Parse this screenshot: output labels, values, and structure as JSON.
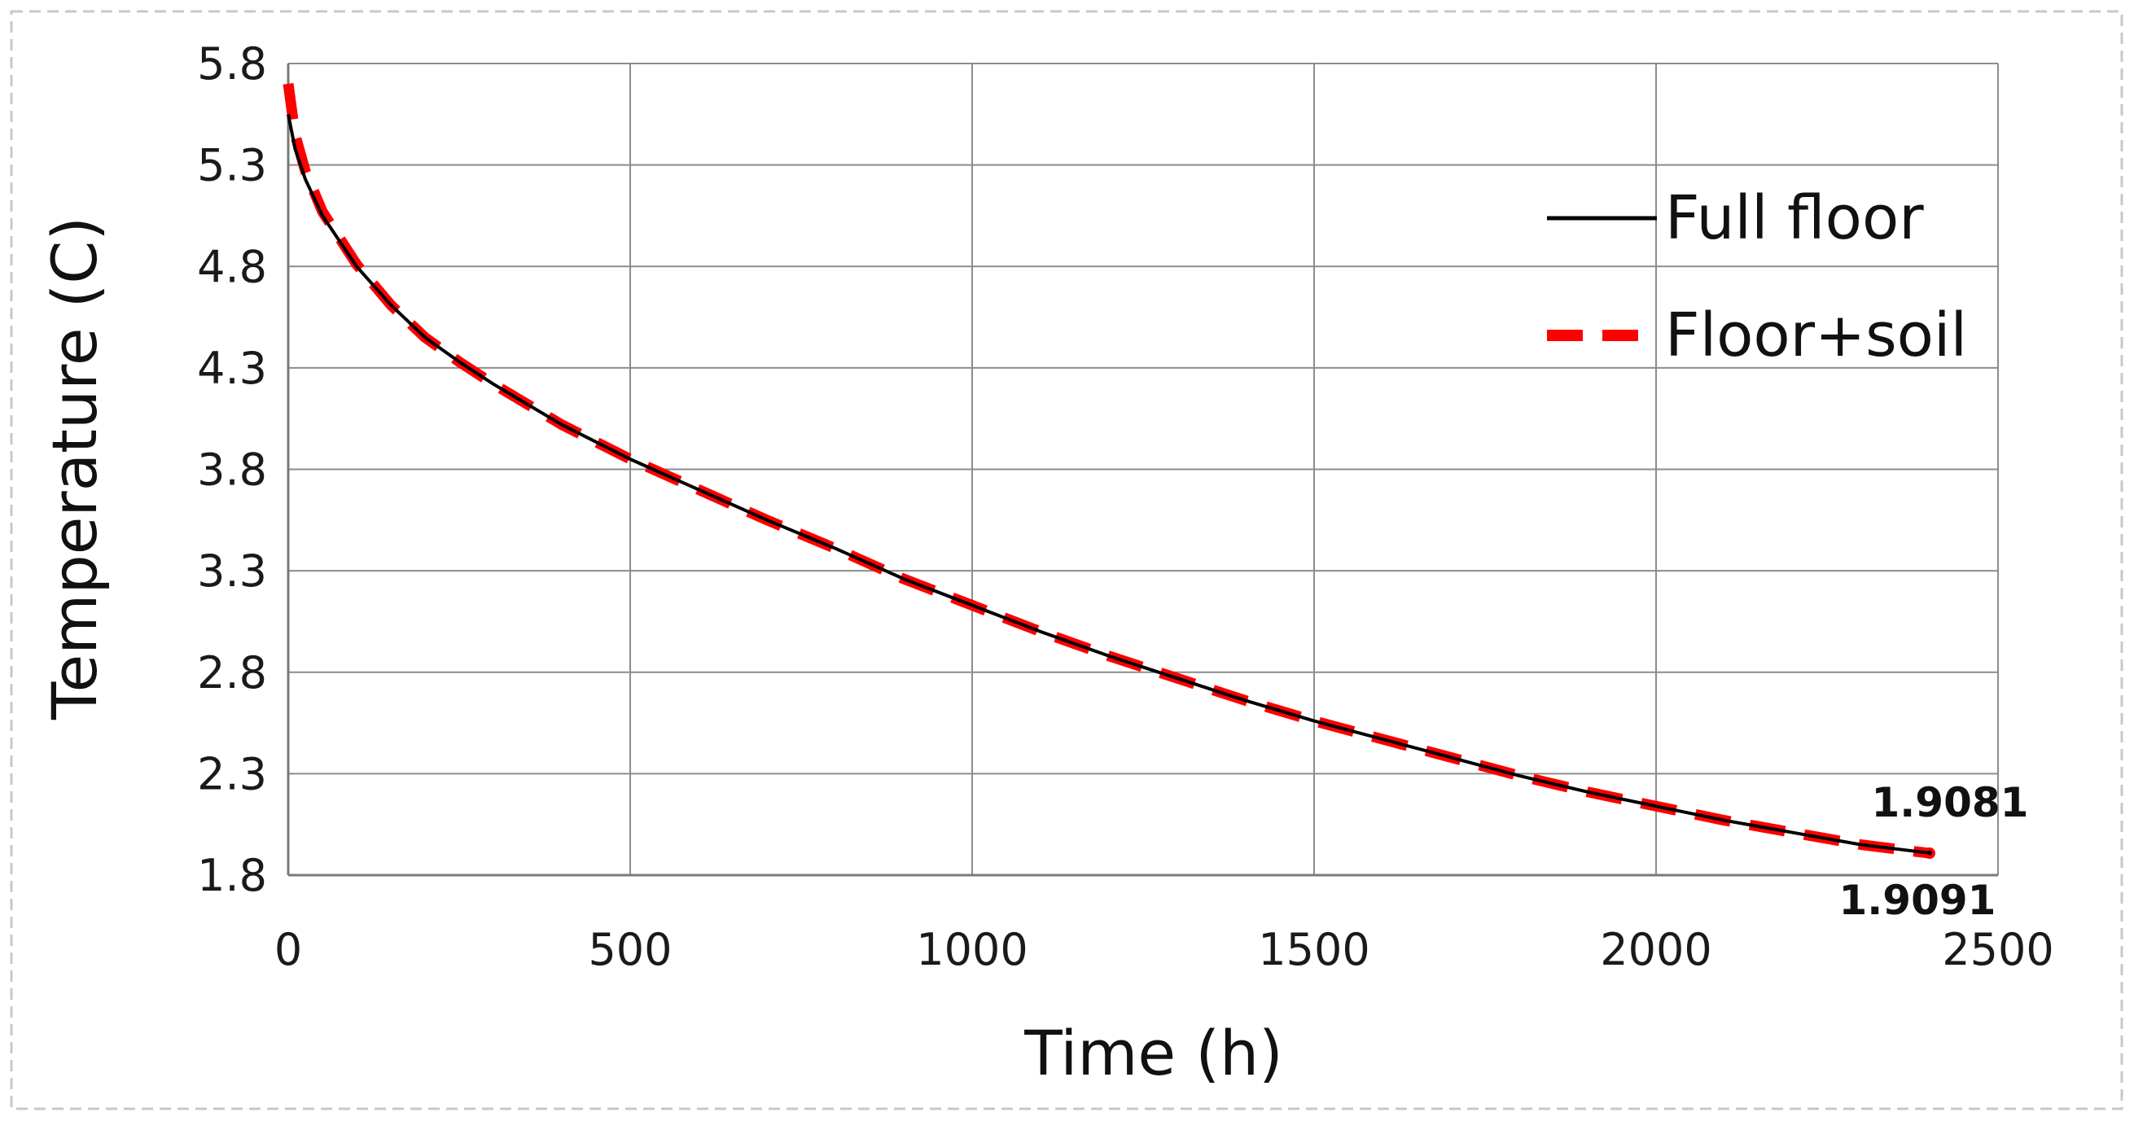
{
  "chart_data": {
    "type": "line",
    "title": "",
    "xlabel": "Time (h)",
    "ylabel": "Temperature (C)",
    "xlim": [
      0,
      2500
    ],
    "ylim": [
      1.8,
      5.8
    ],
    "xticks": [
      "0",
      "500",
      "1000",
      "1500",
      "2000",
      "2500"
    ],
    "yticks": [
      "5.8",
      "5.3",
      "4.8",
      "4.3",
      "3.8",
      "3.3",
      "2.8",
      "2.3",
      "1.8"
    ],
    "grid": true,
    "legend_position": "top-right",
    "series": [
      {
        "name": "Full floor",
        "color": "#000000",
        "style": "solid",
        "x": [
          0,
          10,
          25,
          50,
          100,
          150,
          200,
          250,
          300,
          400,
          500,
          600,
          700,
          800,
          900,
          1000,
          1100,
          1200,
          1300,
          1400,
          1500,
          1600,
          1700,
          1800,
          1900,
          2000,
          2100,
          2200,
          2300,
          2400
        ],
        "y": [
          5.55,
          5.38,
          5.23,
          5.05,
          4.8,
          4.61,
          4.45,
          4.33,
          4.22,
          4.02,
          3.85,
          3.7,
          3.55,
          3.41,
          3.26,
          3.13,
          3.0,
          2.88,
          2.77,
          2.66,
          2.56,
          2.47,
          2.38,
          2.29,
          2.21,
          2.14,
          2.07,
          2.01,
          1.95,
          1.9091
        ]
      },
      {
        "name": "Floor+soil",
        "color": "#ff0000",
        "style": "dashed",
        "x": [
          0,
          10,
          25,
          50,
          100,
          150,
          200,
          250,
          300,
          400,
          500,
          600,
          700,
          800,
          900,
          1000,
          1100,
          1200,
          1300,
          1400,
          1500,
          1600,
          1700,
          1800,
          1900,
          2000,
          2100,
          2200,
          2300,
          2400
        ],
        "y": [
          5.7,
          5.45,
          5.27,
          5.07,
          4.81,
          4.61,
          4.45,
          4.33,
          4.22,
          4.02,
          3.85,
          3.7,
          3.55,
          3.41,
          3.26,
          3.13,
          3.0,
          2.88,
          2.77,
          2.66,
          2.56,
          2.47,
          2.38,
          2.29,
          2.21,
          2.14,
          2.07,
          2.01,
          1.95,
          1.9081
        ]
      }
    ],
    "annotations": [
      {
        "text": "1.9081",
        "x": 2400,
        "y": 1.9081,
        "placement": "above"
      },
      {
        "text": "1.9091",
        "x": 2400,
        "y": 1.9091,
        "placement": "below"
      }
    ]
  }
}
